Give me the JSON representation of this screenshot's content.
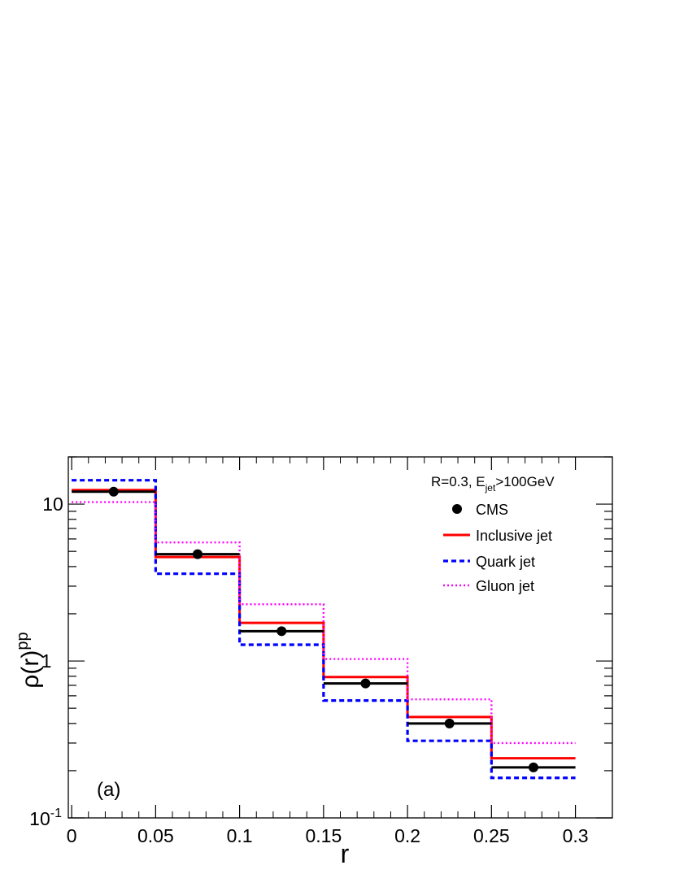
{
  "chart_data": {
    "type": "line",
    "panel_label": "(a)",
    "xlabel": "r",
    "ylabel": "ρ(r)",
    "ylabel_superscript": "pp",
    "xlim": [
      -0.002,
      0.322
    ],
    "ylim": [
      0.1,
      20
    ],
    "yscale": "log",
    "x_ticks": [
      {
        "value": 0,
        "label": "0"
      },
      {
        "value": 0.05,
        "label": "0.05"
      },
      {
        "value": 0.1,
        "label": "0.1"
      },
      {
        "value": 0.15,
        "label": "0.15"
      },
      {
        "value": 0.2,
        "label": "0.2"
      },
      {
        "value": 0.25,
        "label": "0.25"
      },
      {
        "value": 0.3,
        "label": "0.3"
      }
    ],
    "y_tick_labels": {
      "low": {
        "base": "10",
        "exp": "-1"
      },
      "mid": "1",
      "high": "10"
    },
    "legend": {
      "position": "top-right",
      "header": {
        "prefix": "R=0.3, E",
        "sub": "jet",
        "suffix": ">100GeV"
      },
      "entries": [
        {
          "key": "cms",
          "label": "CMS"
        },
        {
          "key": "inclusive",
          "label": "Inclusive jet"
        },
        {
          "key": "quark",
          "label": "Quark jet"
        },
        {
          "key": "gluon",
          "label": "Gluon jet"
        }
      ]
    },
    "bin_edges": [
      0,
      0.05,
      0.1,
      0.15,
      0.2,
      0.25,
      0.3
    ],
    "cms": {
      "x": [
        0.025,
        0.075,
        0.125,
        0.175,
        0.225,
        0.275
      ],
      "y": [
        12.0,
        4.8,
        1.55,
        0.72,
        0.4,
        0.21
      ]
    },
    "series": [
      {
        "key": "inclusive",
        "name": "Inclusive jet",
        "color": "#ff0000",
        "style": "solid",
        "values": [
          12.3,
          4.6,
          1.75,
          0.79,
          0.44,
          0.24
        ]
      },
      {
        "key": "quark",
        "name": "Quark jet",
        "color": "#0000ff",
        "style": "dashed",
        "values": [
          14.2,
          3.6,
          1.27,
          0.56,
          0.31,
          0.18
        ]
      },
      {
        "key": "gluon",
        "name": "Gluon jet",
        "color": "#ff00ff",
        "style": "dotted",
        "values": [
          10.3,
          5.7,
          2.3,
          1.03,
          0.57,
          0.3
        ]
      }
    ]
  }
}
